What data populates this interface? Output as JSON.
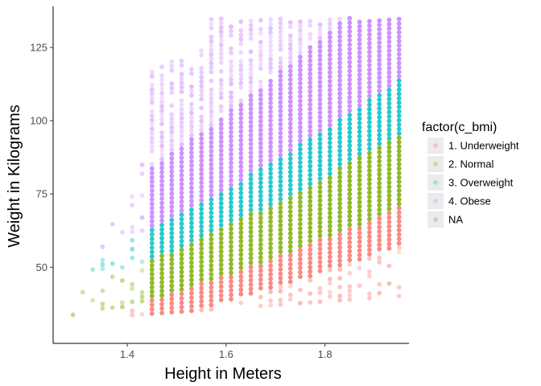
{
  "chart_data": {
    "type": "scatter",
    "xlabel": "Height in Meters",
    "ylabel": "Weight in Kilograms",
    "xlim": [
      1.25,
      1.97
    ],
    "ylim": [
      24,
      139
    ],
    "x_ticks": [
      1.4,
      1.6,
      1.8
    ],
    "x_tick_labels": [
      "1.4",
      "1.6",
      "1.8"
    ],
    "y_ticks": [
      50,
      75,
      100,
      125
    ],
    "y_tick_labels": [
      "50",
      "75",
      "100",
      "125"
    ],
    "grid": false,
    "legend": {
      "title": "factor(c_bmi)",
      "position": "right",
      "entries": [
        {
          "label": "1. Underweight",
          "color": "#F8766D"
        },
        {
          "label": "2. Normal",
          "color": "#7CAE00"
        },
        {
          "label": "3. Overweight",
          "color": "#00BFC4"
        },
        {
          "label": "4. Obese",
          "color": "#C77CFF"
        },
        {
          "label": "NA",
          "color": "#7F7F7F"
        }
      ]
    },
    "bmi_thresholds": [
      18.5,
      25,
      30
    ],
    "height_columns": {
      "start": 1.27,
      "end": 1.95,
      "step": 0.02
    },
    "weight_range": [
      32,
      135
    ],
    "weight_step": 1.5,
    "series": [
      {
        "name": "1. Underweight",
        "color": "#F8766D"
      },
      {
        "name": "2. Normal",
        "color": "#7CAE00"
      },
      {
        "name": "3. Overweight",
        "color": "#00BFC4"
      },
      {
        "name": "4. Obese",
        "color": "#C77CFF"
      },
      {
        "name": "NA",
        "color": "#7F7F7F"
      }
    ]
  }
}
